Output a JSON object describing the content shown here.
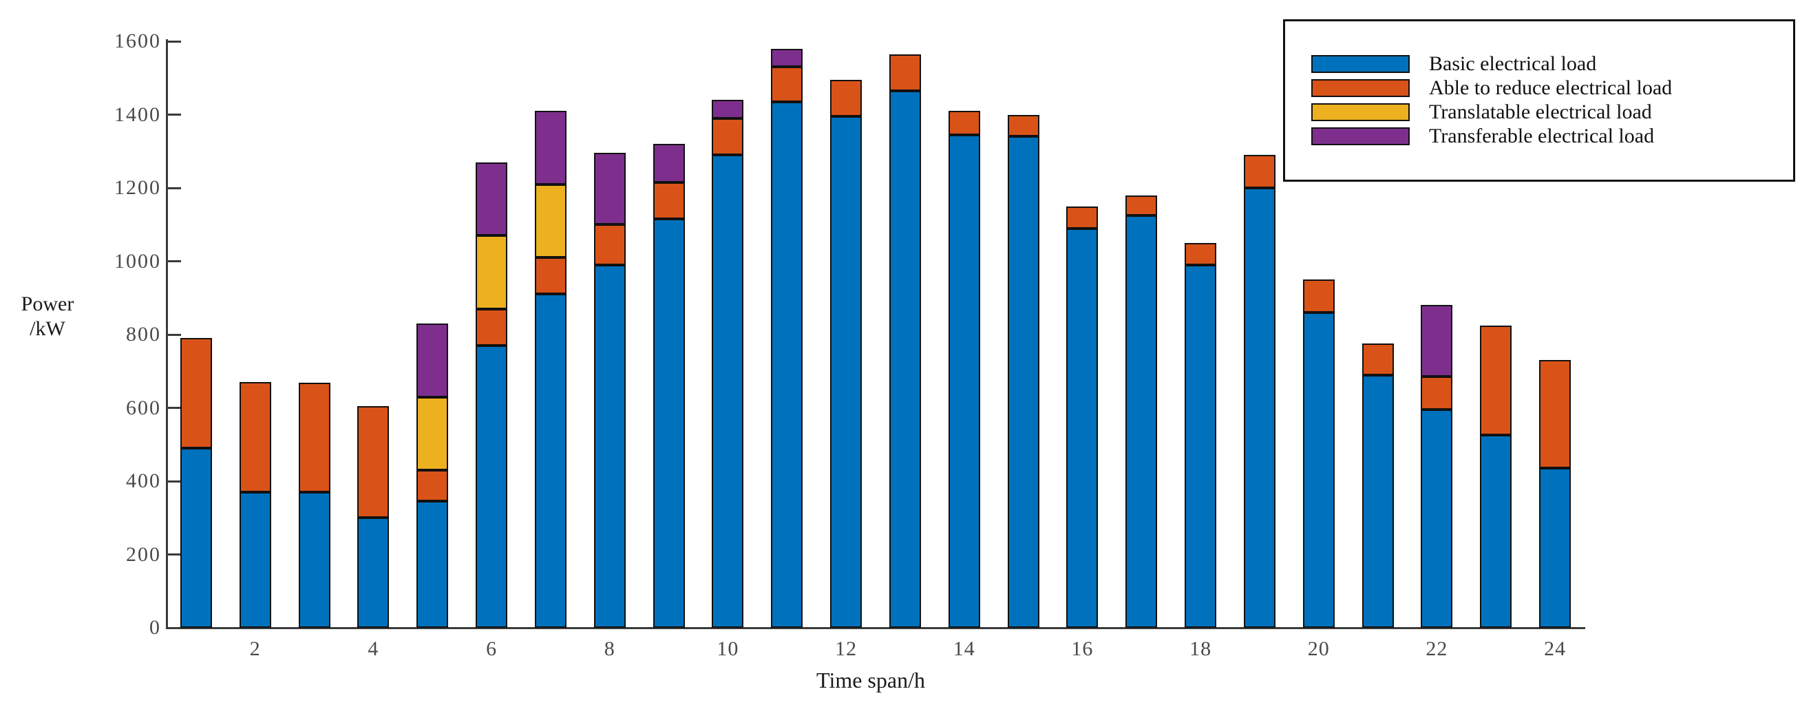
{
  "axes": {
    "color": "#3a3a3a",
    "x_title": "Time span/h",
    "y_title_lines": [
      "Power",
      "/kW"
    ]
  },
  "chart_data": {
    "type": "bar",
    "stacked": true,
    "title": "",
    "xlabel": "Time span/h",
    "ylabel": "Power /kW",
    "grid": false,
    "legend_position": "top-right",
    "bar_edge_color": "#111111",
    "ylim": [
      0,
      1600
    ],
    "yticks": [
      0,
      200,
      400,
      600,
      800,
      1000,
      1200,
      1400,
      1600
    ],
    "xticks": [
      2,
      4,
      6,
      8,
      10,
      12,
      14,
      16,
      18,
      20,
      22,
      24
    ],
    "categories": [
      1,
      2,
      3,
      4,
      5,
      6,
      7,
      8,
      9,
      10,
      11,
      12,
      13,
      14,
      15,
      16,
      17,
      18,
      19,
      20,
      21,
      22,
      23,
      24
    ],
    "series": [
      {
        "name": "Basic electrical load",
        "color": "#0072BD",
        "values": [
          490,
          370,
          370,
          300,
          345,
          770,
          910,
          990,
          1115,
          1290,
          1435,
          1395,
          1465,
          1345,
          1340,
          1090,
          1125,
          990,
          1200,
          860,
          690,
          595,
          525,
          435
        ]
      },
      {
        "name": "Able to reduce electrical load",
        "color": "#D95319",
        "values": [
          300,
          300,
          298,
          305,
          85,
          100,
          100,
          110,
          100,
          100,
          95,
          100,
          100,
          65,
          60,
          60,
          55,
          60,
          90,
          90,
          85,
          90,
          300,
          295
        ]
      },
      {
        "name": "Translatable electrical load",
        "color": "#EDB120",
        "values": [
          0,
          0,
          0,
          0,
          200,
          200,
          200,
          0,
          0,
          0,
          0,
          0,
          0,
          0,
          0,
          0,
          0,
          0,
          0,
          0,
          0,
          0,
          0,
          0
        ]
      },
      {
        "name": "Transferable electrical load",
        "color": "#7E2F8E",
        "values": [
          0,
          0,
          0,
          0,
          200,
          200,
          200,
          195,
          105,
          50,
          50,
          0,
          0,
          0,
          0,
          0,
          0,
          0,
          0,
          0,
          0,
          195,
          0,
          0
        ]
      }
    ]
  }
}
